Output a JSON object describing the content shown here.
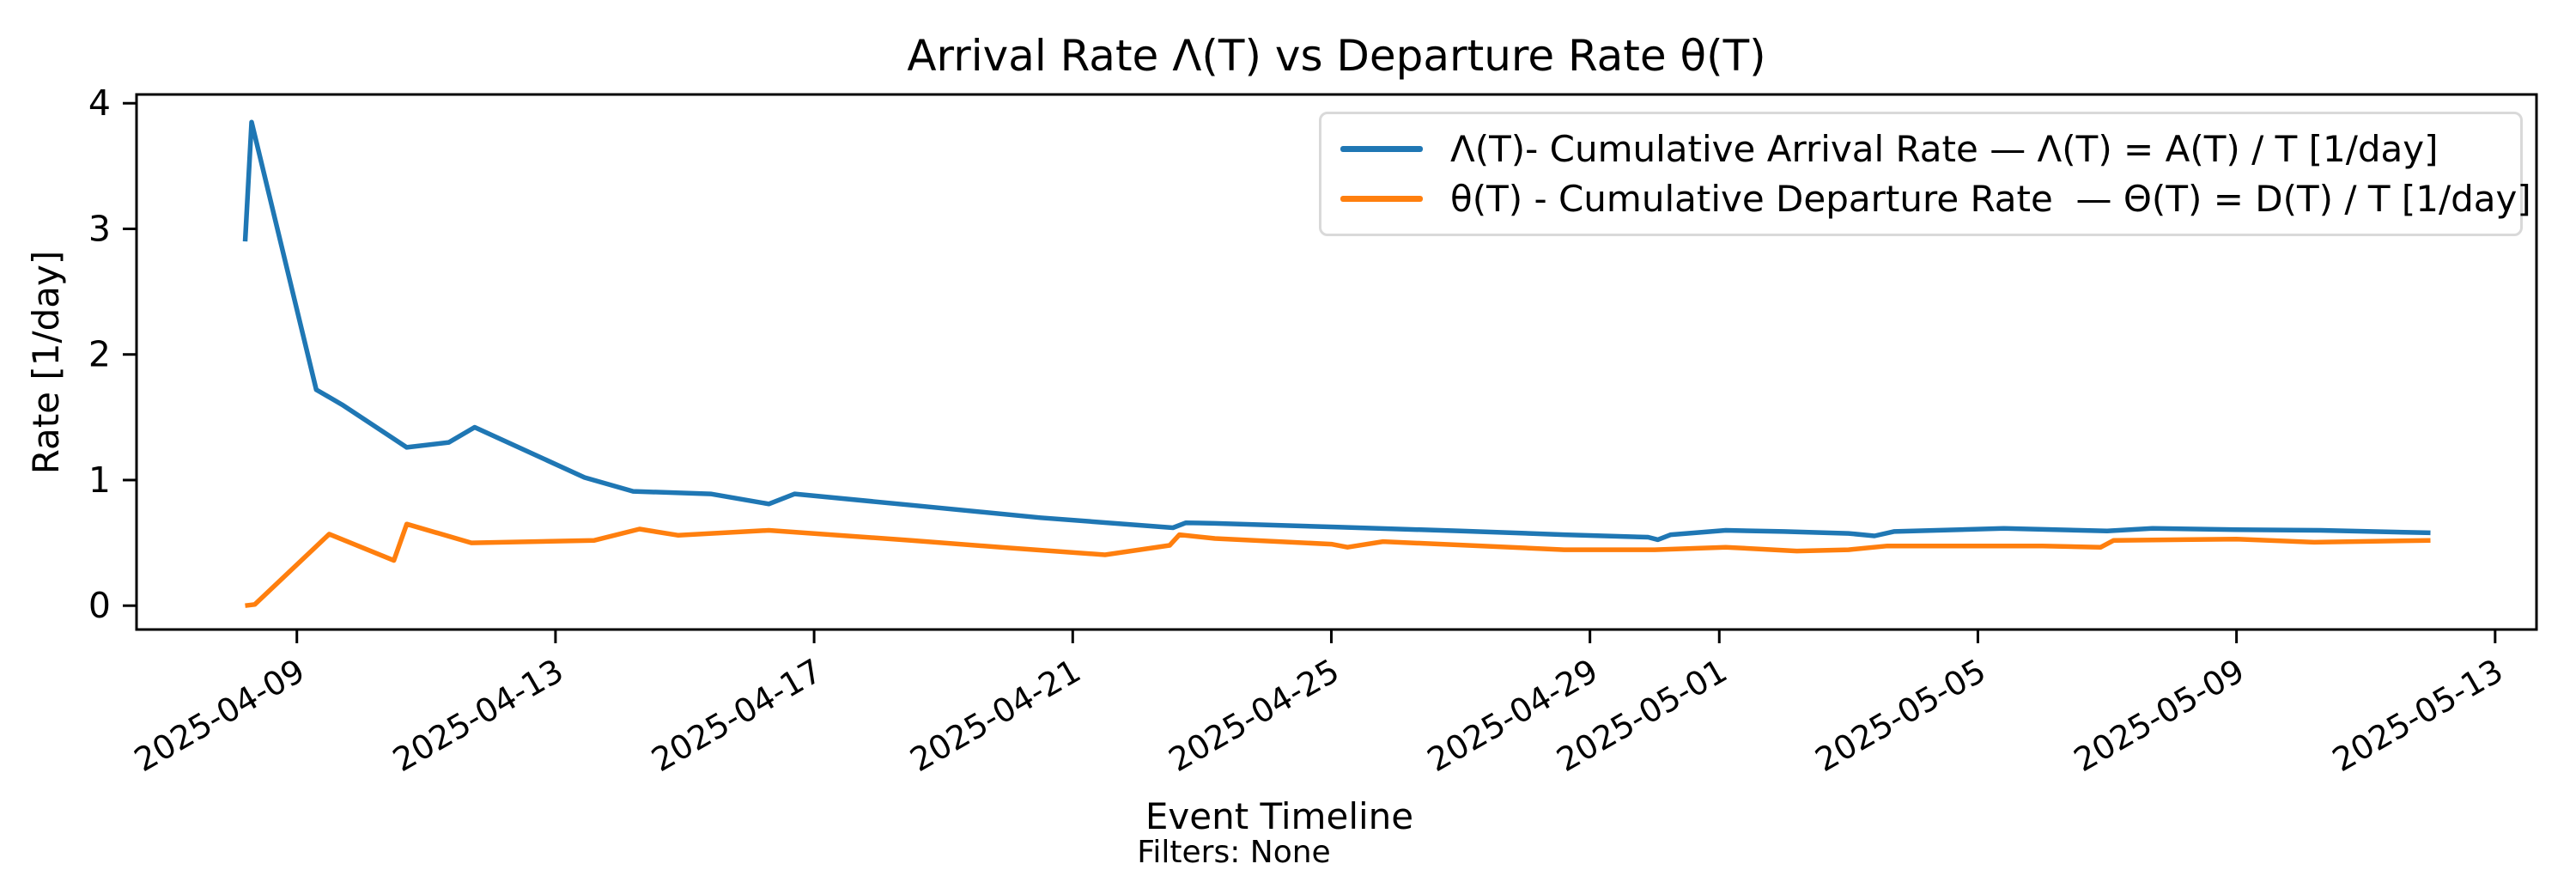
{
  "figure": {
    "title": "Arrival Rate Λ(T) vs Departure Rate θ(T)",
    "xlabel": "Event Timeline",
    "ylabel": "Rate [1/day]",
    "note": "Filters: None"
  },
  "legend": {
    "position": "upper right",
    "entries": [
      {
        "label": "Λ(T)- Cumulative Arrival Rate — Λ(T) = A(T) / T [1/day]",
        "color": "#1f77b4"
      },
      {
        "label": "θ(T) - Cumulative Departure Rate  — Θ(T) = D(T) / T [1/day]",
        "color": "#ff7f0e"
      }
    ]
  },
  "chart_data": {
    "type": "line",
    "title": "Arrival Rate Λ(T) vs Departure Rate θ(T)",
    "xlabel": "Event Timeline",
    "ylabel": "Rate [1/day]",
    "grid": false,
    "legend_position": "upper right",
    "x_unit": "days since 2025-04-08 (data points occur at event times, fractional days)",
    "xlim_days": [
      -1.48,
      35.64
    ],
    "ylim": [
      -0.19,
      4.07
    ],
    "yticks": [
      0,
      1,
      2,
      3,
      4
    ],
    "xticks": [
      {
        "label": "2025-04-09",
        "day": 1
      },
      {
        "label": "2025-04-13",
        "day": 5
      },
      {
        "label": "2025-04-17",
        "day": 9
      },
      {
        "label": "2025-04-21",
        "day": 13
      },
      {
        "label": "2025-04-25",
        "day": 17
      },
      {
        "label": "2025-04-29",
        "day": 21
      },
      {
        "label": "2025-05-01",
        "day": 23
      },
      {
        "label": "2025-05-05",
        "day": 27
      },
      {
        "label": "2025-05-09",
        "day": 31
      },
      {
        "label": "2025-05-13",
        "day": 35
      }
    ],
    "series": [
      {
        "name": "Λ(T) Cumulative Arrival Rate",
        "color": "#1f77b4",
        "points": [
          [
            0.2,
            2.9
          ],
          [
            0.3,
            3.85
          ],
          [
            1.3,
            1.72
          ],
          [
            1.7,
            1.6
          ],
          [
            2.7,
            1.26
          ],
          [
            3.35,
            1.3
          ],
          [
            3.75,
            1.42
          ],
          [
            5.45,
            1.02
          ],
          [
            6.2,
            0.91
          ],
          [
            7.4,
            0.89
          ],
          [
            8.3,
            0.81
          ],
          [
            8.7,
            0.89
          ],
          [
            10.5,
            0.8
          ],
          [
            12.5,
            0.7
          ],
          [
            14.55,
            0.62
          ],
          [
            14.75,
            0.66
          ],
          [
            15.2,
            0.655
          ],
          [
            17.1,
            0.625
          ],
          [
            19.0,
            0.595
          ],
          [
            20.6,
            0.565
          ],
          [
            21.9,
            0.545
          ],
          [
            22.05,
            0.525
          ],
          [
            22.25,
            0.565
          ],
          [
            23.1,
            0.6
          ],
          [
            24.0,
            0.59
          ],
          [
            25.0,
            0.575
          ],
          [
            25.4,
            0.555
          ],
          [
            25.7,
            0.59
          ],
          [
            27.4,
            0.615
          ],
          [
            29.0,
            0.595
          ],
          [
            29.7,
            0.615
          ],
          [
            31.0,
            0.605
          ],
          [
            32.3,
            0.6
          ],
          [
            34.0,
            0.58
          ]
        ]
      },
      {
        "name": "Θ(T) Cumulative Departure Rate",
        "color": "#ff7f0e",
        "points": [
          [
            0.2,
            0.0
          ],
          [
            0.35,
            0.01
          ],
          [
            1.5,
            0.57
          ],
          [
            2.5,
            0.36
          ],
          [
            2.7,
            0.65
          ],
          [
            3.7,
            0.5
          ],
          [
            5.6,
            0.52
          ],
          [
            6.3,
            0.61
          ],
          [
            6.9,
            0.56
          ],
          [
            8.3,
            0.6
          ],
          [
            10.5,
            0.52
          ],
          [
            12.0,
            0.46
          ],
          [
            13.5,
            0.405
          ],
          [
            14.5,
            0.48
          ],
          [
            14.65,
            0.565
          ],
          [
            15.2,
            0.535
          ],
          [
            17.0,
            0.49
          ],
          [
            17.25,
            0.465
          ],
          [
            17.8,
            0.51
          ],
          [
            20.6,
            0.445
          ],
          [
            22.0,
            0.445
          ],
          [
            23.1,
            0.465
          ],
          [
            24.2,
            0.435
          ],
          [
            25.0,
            0.445
          ],
          [
            25.6,
            0.475
          ],
          [
            28.0,
            0.475
          ],
          [
            28.9,
            0.465
          ],
          [
            29.1,
            0.52
          ],
          [
            31.0,
            0.53
          ],
          [
            32.2,
            0.505
          ],
          [
            34.0,
            0.52
          ]
        ]
      }
    ]
  }
}
